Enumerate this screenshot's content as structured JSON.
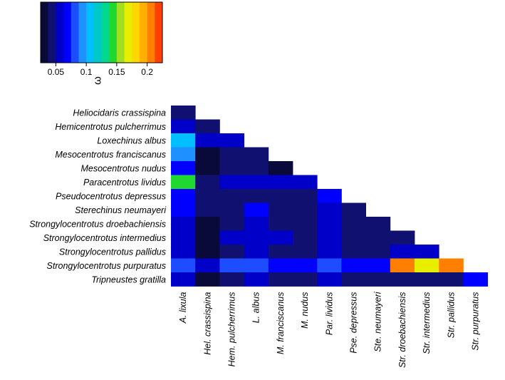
{
  "chart_data": {
    "type": "heatmap",
    "title": "",
    "legend": {
      "label": "ω",
      "ticks": [
        0.05,
        0.1,
        0.15,
        0.2
      ],
      "tick_labels": [
        "0.05",
        "0.1",
        "0.15",
        "0.2"
      ],
      "range": [
        0.025,
        0.225
      ],
      "placement": "top-left",
      "colors": [
        "#0a0a3a",
        "#101070",
        "#0000c8",
        "#0000ff",
        "#1e4dff",
        "#1e90ff",
        "#00bfff",
        "#00c8c8",
        "#00d890",
        "#20d830",
        "#a0e020",
        "#e8ee00",
        "#ffd700",
        "#ffb000",
        "#ff8000",
        "#ff4000"
      ]
    },
    "rows": [
      "Heliocidaris crassispina",
      "Hemicentrotus pulcherrimus",
      "Loxechinus albus",
      "Mesocentrotus franciscanus",
      "Mesocentrotus nudus",
      "Paracentrotus lividus",
      "Pseudocentrotus depressus",
      "Sterechinus neumayeri",
      "Strongylocentrotus droebachiensis",
      "Strongylocentrotus intermedius",
      "Strongylocentrotus pallidus",
      "Strongylocentrotus purpuratus",
      "Tripneustes gratilla"
    ],
    "columns": [
      "A. lixula",
      "Hel. crassispina",
      "Hem. pulcherrimus",
      "L. albus",
      "M. franciscanus",
      "M. nudus",
      "Par. lividus",
      "Pse. depressus",
      "Ste. neumayeri",
      "Str. droebachiensis",
      "Str. intermedius",
      "Str. pallidus",
      "Str. purpuratus"
    ],
    "values": [
      [
        0.04
      ],
      [
        0.06,
        0.04
      ],
      [
        0.11,
        0.06,
        0.06
      ],
      [
        0.09,
        0.035,
        0.045,
        0.04
      ],
      [
        0.07,
        0.035,
        0.04,
        0.045,
        0.035
      ],
      [
        0.14,
        0.045,
        0.06,
        0.06,
        0.06,
        0.06
      ],
      [
        0.075,
        0.045,
        0.04,
        0.045,
        0.045,
        0.04,
        0.075
      ],
      [
        0.075,
        0.045,
        0.045,
        0.07,
        0.045,
        0.045,
        0.06,
        0.04
      ],
      [
        0.06,
        0.035,
        0.04,
        0.06,
        0.045,
        0.04,
        0.06,
        0.04,
        0.045
      ],
      [
        0.06,
        0.035,
        0.05,
        0.06,
        0.05,
        0.04,
        0.06,
        0.045,
        0.045,
        0.045
      ],
      [
        0.06,
        0.035,
        0.04,
        0.06,
        0.04,
        0.04,
        0.06,
        0.04,
        0.045,
        0.055,
        0.06
      ],
      [
        0.085,
        0.06,
        0.085,
        0.085,
        0.075,
        0.075,
        0.085,
        0.075,
        0.075,
        0.21,
        0.17,
        0.2
      ],
      [
        0.06,
        0.035,
        0.045,
        0.055,
        0.04,
        0.045,
        0.06,
        0.045,
        0.045,
        0.045,
        0.045,
        0.045,
        0.075
      ]
    ]
  }
}
